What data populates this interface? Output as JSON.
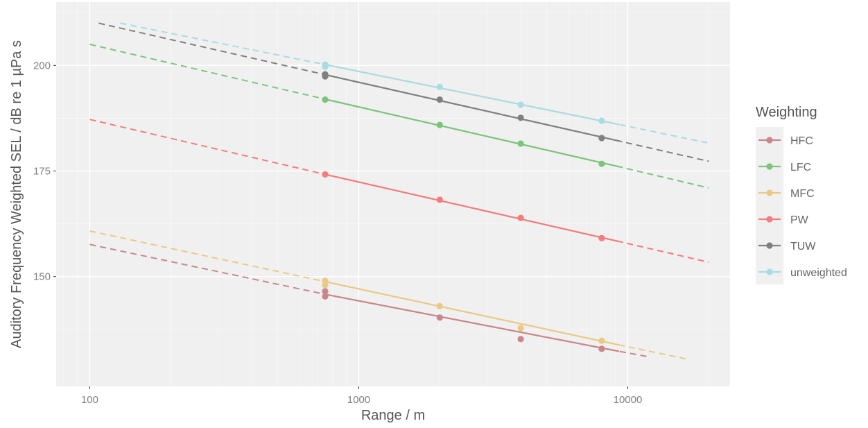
{
  "chart_data": {
    "type": "line",
    "title": "",
    "xlabel": "Range / m",
    "ylabel": "Auditory Frequency Weighted SEL / dB re 1 µPa s",
    "x_scale": "log",
    "xlim": [
      75,
      24000
    ],
    "ylim": [
      124,
      215
    ],
    "x_ticks": [
      100,
      1000,
      10000
    ],
    "x_tick_labels": [
      "100",
      "1000",
      "10000"
    ],
    "y_ticks": [
      150,
      175,
      200
    ],
    "y_tick_labels": [
      "150",
      "175",
      "200"
    ],
    "grid": true,
    "legend_title": "Weighting",
    "legend_position": "right",
    "series": [
      {
        "name": "HFC",
        "color": "#c9878a",
        "points": [
          {
            "x": 750,
            "y": 146.5
          },
          {
            "x": 750,
            "y": 145.3
          },
          {
            "x": 2000,
            "y": 140.3
          },
          {
            "x": 4000,
            "y": 135.2
          },
          {
            "x": 8000,
            "y": 132.9
          }
        ],
        "fit_solid": [
          [
            750,
            145.8
          ],
          [
            9300,
            132.3
          ]
        ],
        "fit_dashed": [
          [
            100,
            157.6
          ],
          [
            750,
            145.8
          ],
          [
            9300,
            132.3
          ],
          [
            12000,
            131.0
          ]
        ]
      },
      {
        "name": "LFC",
        "color": "#7cc47c",
        "points": [
          {
            "x": 750,
            "y": 191.9
          },
          {
            "x": 2000,
            "y": 185.9
          },
          {
            "x": 4000,
            "y": 181.5
          },
          {
            "x": 8000,
            "y": 176.7
          }
        ],
        "fit_solid": [
          [
            750,
            192.0
          ],
          [
            9300,
            176.0
          ]
        ],
        "fit_dashed": [
          [
            100,
            205.0
          ],
          [
            750,
            192.0
          ],
          [
            9300,
            176.0
          ],
          [
            20000,
            171.0
          ]
        ]
      },
      {
        "name": "MFC",
        "color": "#eac986",
        "points": [
          {
            "x": 750,
            "y": 149.0
          },
          {
            "x": 750,
            "y": 148.0
          },
          {
            "x": 2000,
            "y": 143.0
          },
          {
            "x": 4000,
            "y": 137.8
          },
          {
            "x": 8000,
            "y": 134.8
          }
        ],
        "fit_solid": [
          [
            750,
            148.8
          ],
          [
            9300,
            133.8
          ]
        ],
        "fit_dashed": [
          [
            100,
            160.8
          ],
          [
            750,
            148.8
          ],
          [
            9300,
            133.8
          ],
          [
            16500,
            130.5
          ]
        ]
      },
      {
        "name": "PW",
        "color": "#f47c7c",
        "points": [
          {
            "x": 750,
            "y": 174.2
          },
          {
            "x": 2000,
            "y": 168.2
          },
          {
            "x": 4000,
            "y": 163.9
          },
          {
            "x": 8000,
            "y": 159.1
          }
        ],
        "fit_solid": [
          [
            750,
            174.2
          ],
          [
            9300,
            158.3
          ]
        ],
        "fit_dashed": [
          [
            100,
            187.2
          ],
          [
            750,
            174.2
          ],
          [
            9300,
            158.3
          ],
          [
            20000,
            153.4
          ]
        ]
      },
      {
        "name": "TUW",
        "color": "#808080",
        "points": [
          {
            "x": 750,
            "y": 197.9
          },
          {
            "x": 750,
            "y": 197.4
          },
          {
            "x": 2000,
            "y": 191.9
          },
          {
            "x": 4000,
            "y": 187.6
          },
          {
            "x": 8000,
            "y": 182.8
          }
        ],
        "fit_solid": [
          [
            750,
            197.8
          ],
          [
            9300,
            182.1
          ]
        ],
        "fit_dashed": [
          [
            108,
            210.0
          ],
          [
            750,
            197.8
          ],
          [
            9300,
            182.1
          ],
          [
            20000,
            177.3
          ]
        ]
      },
      {
        "name": "unweighted",
        "color": "#a8dce0",
        "points": [
          {
            "x": 750,
            "y": 200.2
          },
          {
            "x": 750,
            "y": 199.7
          },
          {
            "x": 2000,
            "y": 194.9
          },
          {
            "x": 4000,
            "y": 190.7
          },
          {
            "x": 8000,
            "y": 186.9
          }
        ],
        "fit_solid": [
          [
            750,
            200.2
          ],
          [
            9300,
            186.0
          ]
        ],
        "fit_dashed": [
          [
            130,
            210.0
          ],
          [
            750,
            200.2
          ],
          [
            9300,
            186.0
          ],
          [
            20000,
            181.6
          ]
        ]
      }
    ]
  }
}
